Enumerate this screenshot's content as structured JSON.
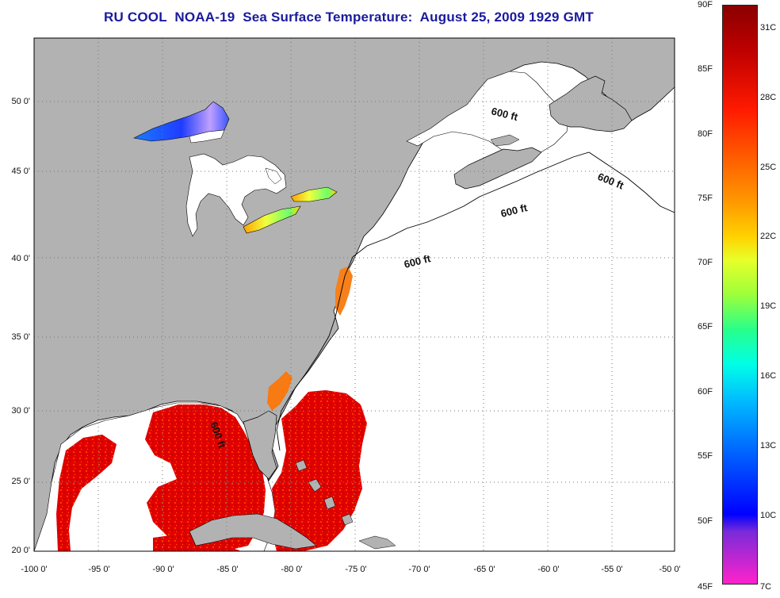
{
  "title": "RU COOL  NOAA-19  Sea Surface Temperature:  August 25, 2009 1929 GMT",
  "map": {
    "lat_labels": [
      "50 0'",
      "45 0'",
      "40 0'",
      "35 0'",
      "30 0'",
      "25 0'",
      "20 0'"
    ],
    "lon_labels": [
      "-100 0'",
      "-95 0'",
      "-90 0'",
      "-85 0'",
      "-80 0'",
      "-75 0'",
      "-70 0'",
      "-65 0'",
      "-60 0'",
      "-55 0'",
      "-50 0'"
    ],
    "isobath_labels": [
      "600 ft",
      "600 ft",
      "600 ft",
      "600 ft",
      "600 ft"
    ],
    "colors": {
      "land": "#b2b2b2",
      "no_data": "#ffffff",
      "coast": "#000000",
      "grid": "#666666"
    }
  },
  "colorbar": {
    "fahrenheit_labels": [
      "90F",
      "85F",
      "80F",
      "75F",
      "70F",
      "65F",
      "60F",
      "55F",
      "50F",
      "45F"
    ],
    "celsius_labels": [
      "31C",
      "28C",
      "25C",
      "22C",
      "19C",
      "16C",
      "13C",
      "10C",
      "7C"
    ]
  }
}
